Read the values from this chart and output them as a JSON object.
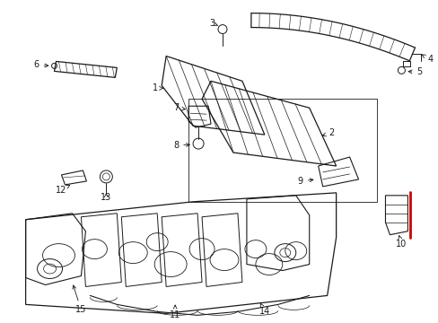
{
  "background_color": "#ffffff",
  "line_color": "#1a1a1a",
  "red_color": "#cc0000",
  "fig_width": 4.89,
  "fig_height": 3.6,
  "dpi": 100
}
